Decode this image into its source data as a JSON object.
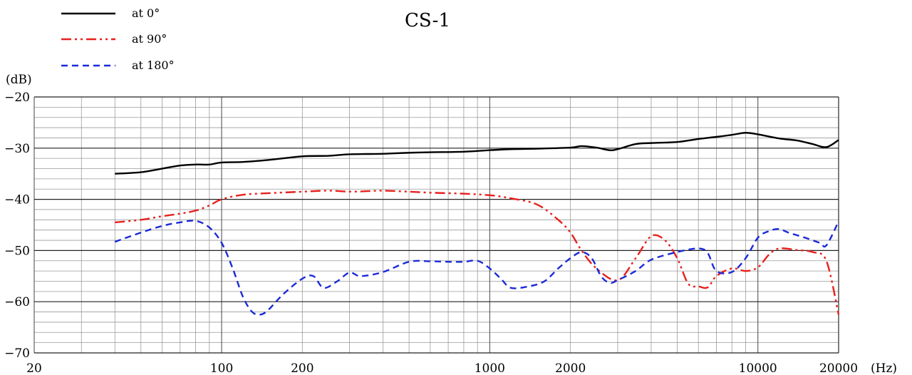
{
  "chart_data": {
    "type": "line",
    "title": "CS-1",
    "ylabel": "(dB)",
    "xlabel": "(Hz)",
    "xscale": "log",
    "xlim": [
      20,
      20000
    ],
    "ylim": [
      -70,
      -20
    ],
    "grid": true,
    "legend_position": "top-left",
    "x_ticks": [
      {
        "value": 20,
        "label": "20"
      },
      {
        "value": 100,
        "label": "100"
      },
      {
        "value": 200,
        "label": "200"
      },
      {
        "value": 1000,
        "label": "1000"
      },
      {
        "value": 2000,
        "label": "2000"
      },
      {
        "value": 10000,
        "label": "10000"
      },
      {
        "value": 20000,
        "label": "20000"
      }
    ],
    "y_ticks": [
      {
        "value": -20,
        "label": "−20"
      },
      {
        "value": -30,
        "label": "−30"
      },
      {
        "value": -40,
        "label": "−40"
      },
      {
        "value": -50,
        "label": "−50"
      },
      {
        "value": -60,
        "label": "−60"
      },
      {
        "value": -70,
        "label": "−70"
      }
    ],
    "series": [
      {
        "name": "at 0°",
        "color": "#000000",
        "dash": "solid",
        "points": [
          [
            40,
            -35
          ],
          [
            50,
            -34.7
          ],
          [
            60,
            -34.0
          ],
          [
            70,
            -33.4
          ],
          [
            80,
            -33.2
          ],
          [
            90,
            -33.2
          ],
          [
            100,
            -32.8
          ],
          [
            120,
            -32.7
          ],
          [
            150,
            -32.3
          ],
          [
            200,
            -31.6
          ],
          [
            250,
            -31.5
          ],
          [
            300,
            -31.2
          ],
          [
            400,
            -31.1
          ],
          [
            500,
            -30.9
          ],
          [
            600,
            -30.8
          ],
          [
            800,
            -30.7
          ],
          [
            1000,
            -30.4
          ],
          [
            1200,
            -30.2
          ],
          [
            1500,
            -30.1
          ],
          [
            2000,
            -29.9
          ],
          [
            2200,
            -29.6
          ],
          [
            2500,
            -29.9
          ],
          [
            2800,
            -30.4
          ],
          [
            3000,
            -30.2
          ],
          [
            3500,
            -29.2
          ],
          [
            4000,
            -29.0
          ],
          [
            5000,
            -28.8
          ],
          [
            6000,
            -28.2
          ],
          [
            7000,
            -27.8
          ],
          [
            8000,
            -27.4
          ],
          [
            9000,
            -27.0
          ],
          [
            10000,
            -27.3
          ],
          [
            12000,
            -28.1
          ],
          [
            14000,
            -28.5
          ],
          [
            16000,
            -29.2
          ],
          [
            18000,
            -29.8
          ],
          [
            20000,
            -28.4
          ]
        ]
      },
      {
        "name": "at 90°",
        "color": "#e8201c",
        "dash": "dashdotdot",
        "points": [
          [
            40,
            -44.5
          ],
          [
            50,
            -44
          ],
          [
            60,
            -43.3
          ],
          [
            70,
            -42.8
          ],
          [
            80,
            -42.2
          ],
          [
            90,
            -41.2
          ],
          [
            100,
            -40.0
          ],
          [
            120,
            -39.1
          ],
          [
            150,
            -38.8
          ],
          [
            200,
            -38.5
          ],
          [
            250,
            -38.3
          ],
          [
            300,
            -38.5
          ],
          [
            350,
            -38.4
          ],
          [
            400,
            -38.3
          ],
          [
            500,
            -38.5
          ],
          [
            600,
            -38.7
          ],
          [
            800,
            -38.9
          ],
          [
            1000,
            -39.2
          ],
          [
            1200,
            -39.8
          ],
          [
            1500,
            -41.0
          ],
          [
            1800,
            -44.0
          ],
          [
            2000,
            -46.5
          ],
          [
            2200,
            -50.0
          ],
          [
            2500,
            -53.5
          ],
          [
            3000,
            -55.8
          ],
          [
            3500,
            -51.5
          ],
          [
            4000,
            -47.2
          ],
          [
            4500,
            -48.0
          ],
          [
            5000,
            -51.5
          ],
          [
            5500,
            -56.5
          ],
          [
            6000,
            -57.0
          ],
          [
            6500,
            -57.2
          ],
          [
            7000,
            -55.0
          ],
          [
            8000,
            -53.5
          ],
          [
            9000,
            -54.0
          ],
          [
            10000,
            -53.3
          ],
          [
            11000,
            -50.8
          ],
          [
            12000,
            -49.6
          ],
          [
            14000,
            -49.9
          ],
          [
            16000,
            -50.3
          ],
          [
            18000,
            -52.0
          ],
          [
            20000,
            -62.5
          ]
        ]
      },
      {
        "name": "at 180°",
        "color": "#1a2ad8",
        "dash": "dashed",
        "points": [
          [
            40,
            -48.3
          ],
          [
            50,
            -46.5
          ],
          [
            60,
            -45.2
          ],
          [
            70,
            -44.5
          ],
          [
            80,
            -44.2
          ],
          [
            90,
            -45.5
          ],
          [
            100,
            -48.5
          ],
          [
            110,
            -53.5
          ],
          [
            120,
            -59.0
          ],
          [
            130,
            -62.0
          ],
          [
            140,
            -62.5
          ],
          [
            150,
            -61.5
          ],
          [
            170,
            -58.5
          ],
          [
            200,
            -55.5
          ],
          [
            220,
            -55.0
          ],
          [
            240,
            -57.3
          ],
          [
            270,
            -56.0
          ],
          [
            300,
            -54.3
          ],
          [
            330,
            -55.0
          ],
          [
            400,
            -54.2
          ],
          [
            500,
            -52.2
          ],
          [
            600,
            -52.1
          ],
          [
            700,
            -52.2
          ],
          [
            800,
            -52.2
          ],
          [
            900,
            -52.0
          ],
          [
            1000,
            -53.5
          ],
          [
            1100,
            -55.5
          ],
          [
            1200,
            -57.3
          ],
          [
            1400,
            -57.0
          ],
          [
            1600,
            -56.0
          ],
          [
            1800,
            -53.5
          ],
          [
            2000,
            -51.5
          ],
          [
            2200,
            -50.3
          ],
          [
            2400,
            -51.5
          ],
          [
            2600,
            -55.0
          ],
          [
            2800,
            -56.3
          ],
          [
            3000,
            -55.8
          ],
          [
            3500,
            -54.0
          ],
          [
            4000,
            -51.8
          ],
          [
            5000,
            -50.3
          ],
          [
            6000,
            -49.6
          ],
          [
            6500,
            -50.5
          ],
          [
            7000,
            -54.0
          ],
          [
            8000,
            -54.2
          ],
          [
            9000,
            -51.5
          ],
          [
            10000,
            -47.5
          ],
          [
            11000,
            -46.2
          ],
          [
            12000,
            -45.8
          ],
          [
            13000,
            -46.5
          ],
          [
            15000,
            -47.5
          ],
          [
            17000,
            -48.5
          ],
          [
            18000,
            -49.0
          ],
          [
            20000,
            -44.3
          ]
        ]
      }
    ]
  }
}
